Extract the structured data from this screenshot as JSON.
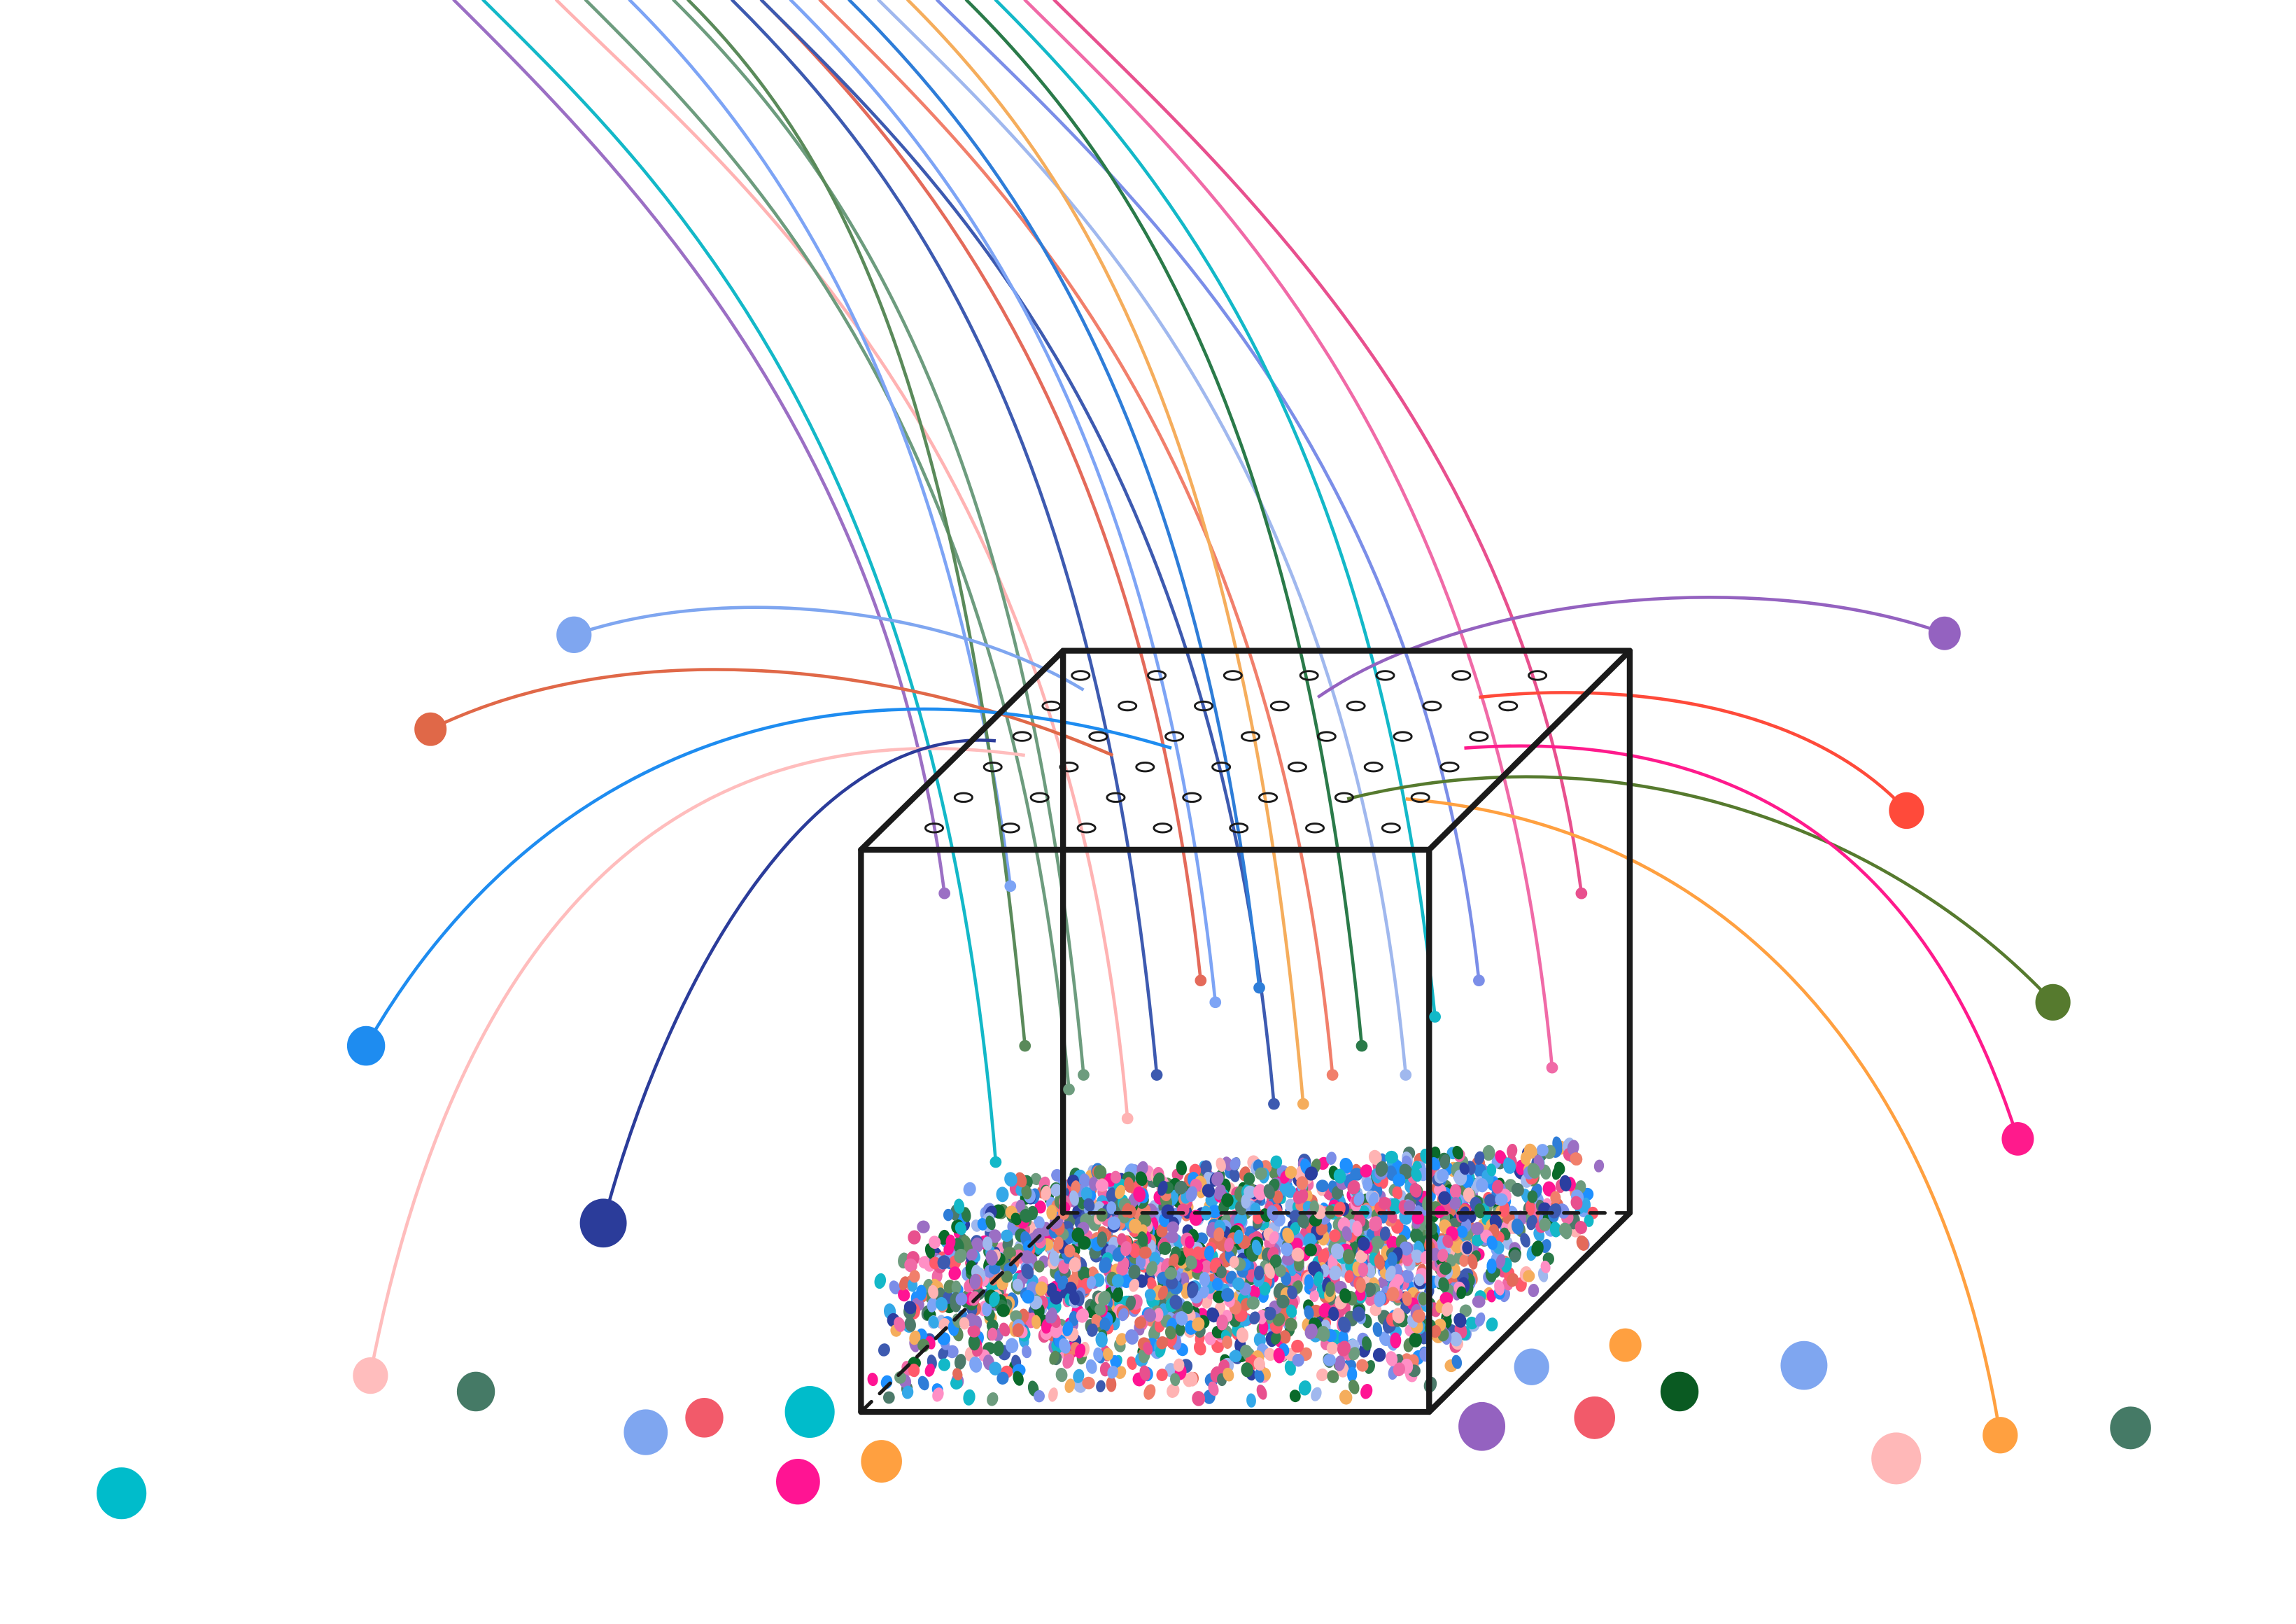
{
  "illustration": {
    "subject": "cube-with-perforated-lid-collecting-colored-beads",
    "background_color": "#ffffff",
    "outline_color": "#1a1a1a",
    "palette": [
      "#9b6fc4",
      "#13b8c8",
      "#ffb3b3",
      "#6d9c7e",
      "#7da4f5",
      "#e46a5a",
      "#3d5ab0",
      "#f17f6b",
      "#f06aa7",
      "#2e7dd8",
      "#f5ad5c",
      "#2a7a49",
      "#a0b8ee",
      "#7b8ee8",
      "#e8508e",
      "#5a8a5a",
      "#ff1493",
      "#1e90ff",
      "#2b3ea0",
      "#4c7a6a",
      "#ff5a6a",
      "#ff8fc5",
      "#0a6a2a",
      "#34a8e8"
    ],
    "marble_colors": {
      "blue_periwinkle": "#7fa6f0",
      "vermilion": "#e06848",
      "azure": "#1e8cf0",
      "pale_pink": "#ffbdbd",
      "navy": "#2b3c9a",
      "purple": "#9462c0",
      "red": "#ff4a3a",
      "olive": "#567a2e",
      "magenta": "#ff1a8c",
      "teal": "#00bccb",
      "jade": "#457a66",
      "rose_red": "#f25a6a",
      "hot_pink": "#ff1493",
      "orange": "#ffa040",
      "forest": "#0a5a22",
      "peach_pink": "#ffb8b8"
    }
  }
}
